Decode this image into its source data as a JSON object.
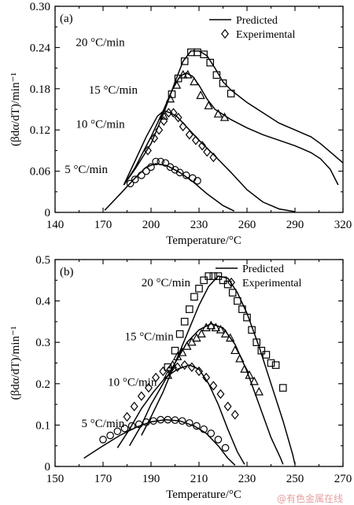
{
  "watermark": "@有色金属在线",
  "chart_data": [
    {
      "type": "line",
      "panel_label": "(a)",
      "xlabel": "Temperature/°C",
      "ylabel": "(βdα/dT)/min⁻¹",
      "xlim": [
        140,
        320
      ],
      "ylim": [
        0,
        0.3
      ],
      "xticks": [
        "140",
        "170",
        "200",
        "230",
        "260",
        "290",
        "320"
      ],
      "yticks": [
        "0",
        "0.06",
        "0.12",
        "0.18",
        "0.24",
        "0.30"
      ],
      "legend": {
        "position": "top-right",
        "predicted": "Predicted",
        "experimental": "Experimental"
      },
      "series": [
        {
          "name": "20 °C/min",
          "marker": "square",
          "label_at": [
            153,
            0.242
          ],
          "predicted": [
            [
              183,
              0.04
            ],
            [
              190,
              0.063
            ],
            [
              200,
              0.1
            ],
            [
              208,
              0.145
            ],
            [
              215,
              0.19
            ],
            [
              220,
              0.22
            ],
            [
              225,
              0.235
            ],
            [
              230,
              0.235
            ],
            [
              235,
              0.228
            ],
            [
              240,
              0.21
            ],
            [
              245,
              0.19
            ],
            [
              250,
              0.178
            ],
            [
              260,
              0.16
            ],
            [
              270,
              0.145
            ],
            [
              280,
              0.13
            ],
            [
              290,
              0.12
            ],
            [
              300,
              0.11
            ],
            [
              306,
              0.1
            ],
            [
              312,
              0.088
            ],
            [
              320,
              0.072
            ]
          ],
          "experimental": [
            [
              213,
              0.172
            ],
            [
              217,
              0.195
            ],
            [
              221,
              0.22
            ],
            [
              225,
              0.233
            ],
            [
              229,
              0.233
            ],
            [
              233,
              0.23
            ],
            [
              237,
              0.218
            ],
            [
              241,
              0.2
            ],
            [
              245,
              0.188
            ],
            [
              250,
              0.173
            ]
          ]
        },
        {
          "name": "15 °C/min",
          "marker": "triangle",
          "label_at": [
            161,
            0.173
          ],
          "predicted": [
            [
              183,
              0.04
            ],
            [
              190,
              0.065
            ],
            [
              200,
              0.11
            ],
            [
              208,
              0.15
            ],
            [
              213,
              0.177
            ],
            [
              218,
              0.198
            ],
            [
              222,
              0.203
            ],
            [
              226,
              0.198
            ],
            [
              230,
              0.185
            ],
            [
              235,
              0.165
            ],
            [
              240,
              0.15
            ],
            [
              250,
              0.135
            ],
            [
              260,
              0.123
            ],
            [
              270,
              0.113
            ],
            [
              280,
              0.105
            ],
            [
              290,
              0.097
            ],
            [
              300,
              0.087
            ],
            [
              306,
              0.078
            ],
            [
              312,
              0.063
            ],
            [
              317,
              0.04
            ]
          ],
          "experimental": [
            [
              208,
              0.14
            ],
            [
              212,
              0.165
            ],
            [
              216,
              0.185
            ],
            [
              220,
              0.2
            ],
            [
              223,
              0.2
            ],
            [
              227,
              0.19
            ],
            [
              231,
              0.17
            ],
            [
              236,
              0.155
            ],
            [
              242,
              0.143
            ],
            [
              246,
              0.138
            ]
          ]
        },
        {
          "name": "10 °C/min",
          "marker": "diamond",
          "label_at": [
            153,
            0.123
          ],
          "predicted": [
            [
              183,
              0.04
            ],
            [
              190,
              0.075
            ],
            [
              197,
              0.11
            ],
            [
              204,
              0.14
            ],
            [
              208,
              0.148
            ],
            [
              212,
              0.145
            ],
            [
              216,
              0.14
            ],
            [
              222,
              0.125
            ],
            [
              230,
              0.105
            ],
            [
              240,
              0.082
            ],
            [
              250,
              0.058
            ],
            [
              260,
              0.033
            ],
            [
              270,
              0.015
            ],
            [
              280,
              0.005
            ],
            [
              290,
              0.001
            ]
          ],
          "experimental": [
            [
              198,
              0.09
            ],
            [
              202,
              0.108
            ],
            [
              205,
              0.12
            ],
            [
              208,
              0.133
            ],
            [
              211,
              0.145
            ],
            [
              214,
              0.145
            ],
            [
              217,
              0.138
            ],
            [
              220,
              0.125
            ],
            [
              224,
              0.113
            ],
            [
              228,
              0.105
            ],
            [
              232,
              0.097
            ],
            [
              235,
              0.088
            ],
            [
              239,
              0.08
            ]
          ]
        },
        {
          "name": "5 °C/min",
          "marker": "circle",
          "label_at": [
            146,
            0.057
          ],
          "predicted": [
            [
              171,
              0.003
            ],
            [
              180,
              0.025
            ],
            [
              190,
              0.05
            ],
            [
              197,
              0.066
            ],
            [
              203,
              0.071
            ],
            [
              210,
              0.068
            ],
            [
              218,
              0.058
            ],
            [
              226,
              0.045
            ],
            [
              235,
              0.027
            ],
            [
              245,
              0.01
            ],
            [
              252,
              0.002
            ]
          ],
          "experimental": [
            [
              187,
              0.042
            ],
            [
              190,
              0.048
            ],
            [
              194,
              0.054
            ],
            [
              197,
              0.06
            ],
            [
              200,
              0.066
            ],
            [
              203,
              0.074
            ],
            [
              206,
              0.074
            ],
            [
              209,
              0.072
            ],
            [
              212,
              0.066
            ],
            [
              215,
              0.062
            ],
            [
              218,
              0.058
            ],
            [
              222,
              0.054
            ],
            [
              226,
              0.05
            ],
            [
              229,
              0.046
            ]
          ]
        }
      ]
    },
    {
      "type": "line",
      "panel_label": "(b)",
      "xlabel": "Temperature/°C",
      "ylabel": "(βdα/dT)/min⁻¹",
      "xlim": [
        150,
        270
      ],
      "ylim": [
        0,
        0.5
      ],
      "xticks": [
        "150",
        "170",
        "190",
        "210",
        "230",
        "250",
        "270"
      ],
      "yticks": [
        "0",
        "0.1",
        "0.2",
        "0.3",
        "0.4",
        "0.5"
      ],
      "legend": {
        "position": "top-right",
        "predicted": "Predicted",
        "experimental": "Experimental"
      },
      "series": [
        {
          "name": "20 °C/min",
          "marker": "square",
          "label_at": [
            186,
            0.435
          ],
          "predicted": [
            [
              186,
              0.075
            ],
            [
              190,
              0.12
            ],
            [
              195,
              0.18
            ],
            [
              200,
              0.25
            ],
            [
              205,
              0.32
            ],
            [
              210,
              0.39
            ],
            [
              214,
              0.435
            ],
            [
              218,
              0.46
            ],
            [
              222,
              0.455
            ],
            [
              226,
              0.42
            ],
            [
              230,
              0.37
            ],
            [
              235,
              0.29
            ],
            [
              240,
              0.2
            ],
            [
              245,
              0.11
            ],
            [
              249,
              0.03
            ],
            [
              250,
              0.005
            ]
          ],
          "experimental": [
            [
              197,
              0.24
            ],
            [
              200,
              0.28
            ],
            [
              202,
              0.32
            ],
            [
              204,
              0.35
            ],
            [
              206,
              0.38
            ],
            [
              208,
              0.41
            ],
            [
              210,
              0.43
            ],
            [
              212,
              0.45
            ],
            [
              214,
              0.46
            ],
            [
              216,
              0.46
            ],
            [
              218,
              0.46
            ],
            [
              220,
              0.45
            ],
            [
              222,
              0.44
            ],
            [
              224,
              0.42
            ],
            [
              226,
              0.4
            ],
            [
              228,
              0.38
            ],
            [
              230,
              0.36
            ],
            [
              232,
              0.33
            ],
            [
              234,
              0.3
            ],
            [
              236,
              0.28
            ],
            [
              238,
              0.27
            ],
            [
              240,
              0.25
            ],
            [
              242,
              0.245
            ],
            [
              245,
              0.19
            ]
          ]
        },
        {
          "name": "15 °C/min",
          "marker": "triangle",
          "label_at": [
            179,
            0.305
          ],
          "predicted": [
            [
              181,
              0.05
            ],
            [
              186,
              0.1
            ],
            [
              190,
              0.15
            ],
            [
              195,
              0.2
            ],
            [
              200,
              0.25
            ],
            [
              205,
              0.3
            ],
            [
              210,
              0.33
            ],
            [
              215,
              0.345
            ],
            [
              220,
              0.335
            ],
            [
              225,
              0.295
            ],
            [
              230,
              0.23
            ],
            [
              235,
              0.15
            ],
            [
              240,
              0.07
            ],
            [
              244,
              0.02
            ],
            [
              245,
              0.005
            ]
          ],
          "experimental": [
            [
              197,
              0.22
            ],
            [
              199,
              0.245
            ],
            [
              201,
              0.265
            ],
            [
              203,
              0.275
            ],
            [
              205,
              0.29
            ],
            [
              207,
              0.3
            ],
            [
              209,
              0.31
            ],
            [
              211,
              0.32
            ],
            [
              213,
              0.335
            ],
            [
              215,
              0.34
            ],
            [
              217,
              0.335
            ],
            [
              219,
              0.33
            ],
            [
              221,
              0.32
            ],
            [
              223,
              0.31
            ],
            [
              225,
              0.28
            ],
            [
              227,
              0.26
            ],
            [
              229,
              0.235
            ],
            [
              231,
              0.22
            ],
            [
              233,
              0.205
            ],
            [
              235,
              0.18
            ]
          ]
        },
        {
          "name": "10 °C/min",
          "marker": "diamond",
          "label_at": [
            172,
            0.195
          ],
          "predicted": [
            [
              176,
              0.045
            ],
            [
              181,
              0.09
            ],
            [
              186,
              0.14
            ],
            [
              191,
              0.18
            ],
            [
              196,
              0.215
            ],
            [
              201,
              0.235
            ],
            [
              206,
              0.245
            ],
            [
              210,
              0.235
            ],
            [
              214,
              0.2
            ],
            [
              218,
              0.15
            ],
            [
              222,
              0.09
            ],
            [
              226,
              0.035
            ],
            [
              229,
              0.005
            ]
          ],
          "experimental": [
            [
              180,
              0.12
            ],
            [
              183,
              0.145
            ],
            [
              186,
              0.17
            ],
            [
              189,
              0.19
            ],
            [
              192,
              0.215
            ],
            [
              195,
              0.23
            ],
            [
              198,
              0.235
            ],
            [
              201,
              0.24
            ],
            [
              204,
              0.245
            ],
            [
              207,
              0.24
            ],
            [
              210,
              0.23
            ],
            [
              213,
              0.215
            ],
            [
              216,
              0.195
            ],
            [
              219,
              0.175
            ],
            [
              222,
              0.145
            ],
            [
              225,
              0.125
            ]
          ]
        },
        {
          "name": "5 °C/min",
          "marker": "circle",
          "label_at": [
            161,
            0.095
          ],
          "predicted": [
            [
              162,
              0.02
            ],
            [
              170,
              0.05
            ],
            [
              177,
              0.075
            ],
            [
              184,
              0.095
            ],
            [
              190,
              0.108
            ],
            [
              196,
              0.113
            ],
            [
              202,
              0.11
            ],
            [
              208,
              0.098
            ],
            [
              213,
              0.08
            ],
            [
              218,
              0.05
            ],
            [
              222,
              0.02
            ],
            [
              225,
              0.003
            ]
          ],
          "experimental": [
            [
              170,
              0.065
            ],
            [
              173,
              0.075
            ],
            [
              176,
              0.085
            ],
            [
              179,
              0.092
            ],
            [
              182,
              0.098
            ],
            [
              185,
              0.102
            ],
            [
              188,
              0.107
            ],
            [
              191,
              0.11
            ],
            [
              194,
              0.113
            ],
            [
              197,
              0.113
            ],
            [
              200,
              0.112
            ],
            [
              203,
              0.11
            ],
            [
              206,
              0.105
            ],
            [
              209,
              0.098
            ],
            [
              212,
              0.09
            ],
            [
              215,
              0.08
            ],
            [
              218,
              0.065
            ],
            [
              221,
              0.045
            ]
          ]
        }
      ]
    }
  ]
}
